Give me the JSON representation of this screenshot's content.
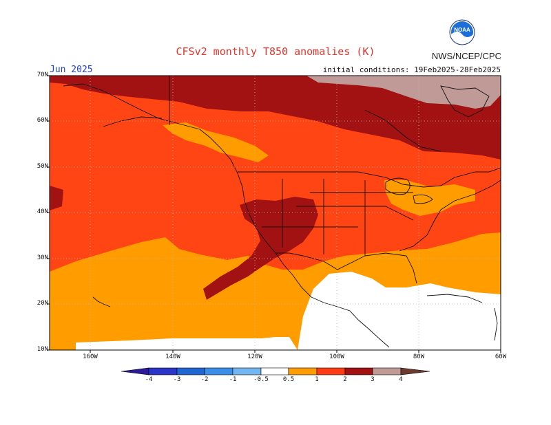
{
  "header": {
    "title": "CFSv2 monthly T850 anomalies (K)",
    "agency": "NWS/NCEP/CPC",
    "logo_text": "NOAA",
    "month": "Jun 2025",
    "initial_conditions": "initial conditions: 19Feb2025-28Feb2025"
  },
  "map": {
    "lat_labels": [
      "70N",
      "60N",
      "50N",
      "40N",
      "30N",
      "20N",
      "10N"
    ],
    "lon_labels": [
      "160W",
      "140W",
      "120W",
      "100W",
      "80W",
      "60W"
    ]
  },
  "colorbar": {
    "labels": [
      "-4",
      "-3",
      "-2",
      "-1",
      "-0.5",
      "0.5",
      "1",
      "2",
      "3",
      "4"
    ],
    "colors": [
      "#2d1a9a",
      "#2b36c8",
      "#1f66d4",
      "#3b8ee8",
      "#74b6f2",
      "#ffffff",
      "#ff9c00",
      "#ff3c14",
      "#a31212",
      "#c09a96",
      "#6b3b30"
    ]
  },
  "palette": {
    "neutral": "#ffffff",
    "a05": "#ff9c00",
    "a1": "#ff4514",
    "a2": "#a31212",
    "a3": "#c09a96",
    "coast": "#111111"
  }
}
